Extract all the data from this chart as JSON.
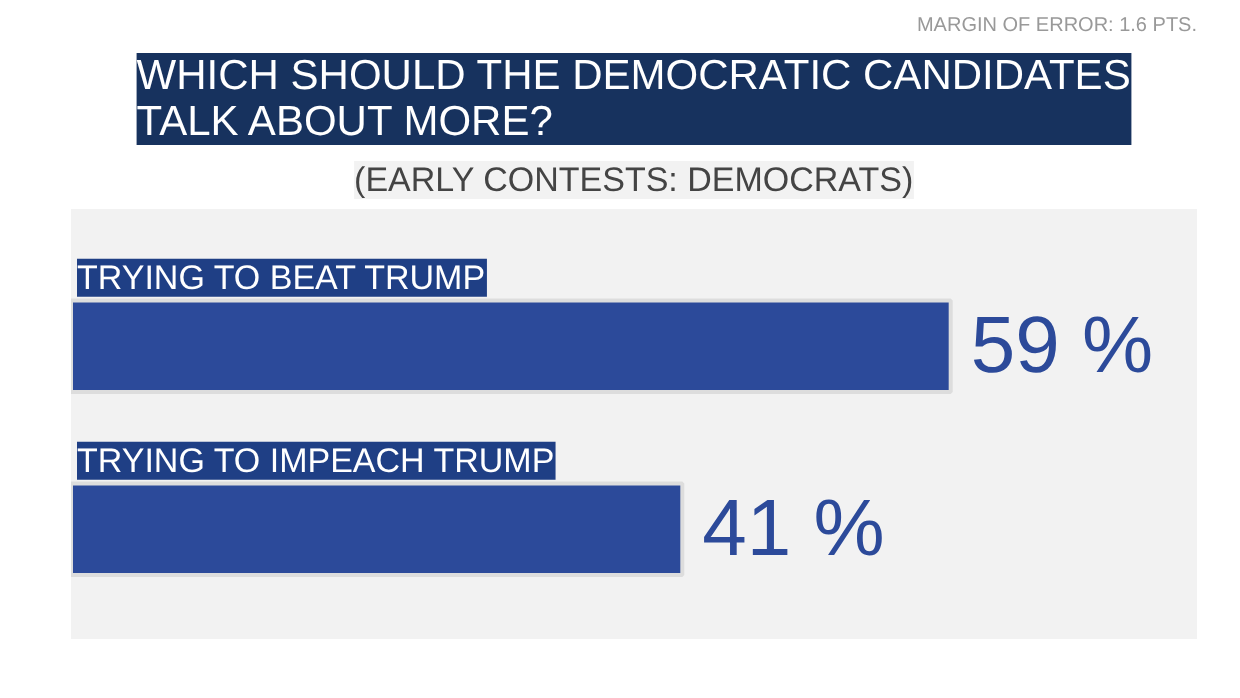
{
  "chart_data": {
    "type": "bar",
    "orientation": "horizontal",
    "title": "WHICH SHOULD THE DEMOCRATIC CANDIDATES TALK ABOUT MORE?",
    "subtitle": "(EARLY CONTESTS: DEMOCRATS)",
    "annotations": [
      "MARGIN OF ERROR: 1.6 PTS."
    ],
    "categories": [
      "TRYING TO BEAT TRUMP",
      "TRYING TO IMPEACH TRUMP"
    ],
    "values": [
      59,
      41
    ],
    "color": "#2c4a9a",
    "value_labels": [
      "59 %",
      "41 %"
    ],
    "grid": false
  }
}
